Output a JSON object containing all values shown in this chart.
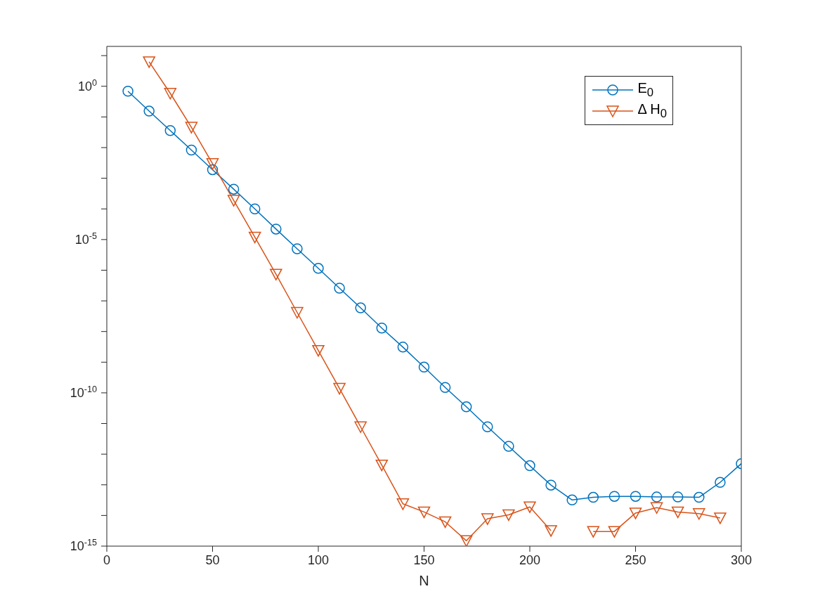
{
  "chart_data": {
    "type": "line",
    "xlabel": "N",
    "log": "y",
    "grid": false,
    "legend": "top right",
    "xlim": [
      0,
      300
    ],
    "xticks": [
      0,
      50,
      100,
      150,
      200,
      250,
      300
    ],
    "ylim": [
      1e-15,
      20
    ],
    "yticks": [
      {
        "value": 1e-15,
        "label": "10$^{-15}$"
      },
      {
        "value": 1e-14,
        "label": null
      },
      {
        "value": 1e-13,
        "label": null
      },
      {
        "value": 1e-12,
        "label": null
      },
      {
        "value": 1e-11,
        "label": null
      },
      {
        "value": 1e-10,
        "label": "10$^{-10}$"
      },
      {
        "value": 1e-09,
        "label": null
      },
      {
        "value": 1e-08,
        "label": null
      },
      {
        "value": 1e-07,
        "label": null
      },
      {
        "value": 1e-06,
        "label": null
      },
      {
        "value": 1e-05,
        "label": "10$^{-5}$"
      },
      {
        "value": 0.0001,
        "label": null
      },
      {
        "value": 0.001,
        "label": null
      },
      {
        "value": 0.01,
        "label": null
      },
      {
        "value": 0.1,
        "label": null
      },
      {
        "value": 1,
        "label": "10$^{0}$"
      },
      {
        "value": 10,
        "label": null
      }
    ],
    "series": [
      {
        "name": "E$_{0}$",
        "color": "#0072bd",
        "marker": "circle",
        "x": [
          10,
          20,
          30,
          40,
          50,
          60,
          70,
          80,
          90,
          100,
          110,
          120,
          130,
          140,
          150,
          160,
          170,
          180,
          190,
          200,
          210,
          220,
          230,
          240,
          250,
          260,
          270,
          280,
          290,
          300
        ],
        "values": [
          0.69,
          0.155,
          0.036,
          0.0083,
          0.0019,
          0.00044,
          0.0001,
          2.2e-05,
          5e-06,
          1.15e-06,
          2.6e-07,
          5.9e-08,
          1.3e-08,
          3.1e-09,
          6.9e-10,
          1.5e-10,
          3.5e-11,
          7.8e-12,
          1.8e-12,
          4.2e-13,
          9.8e-14,
          3.2e-14,
          3.9e-14,
          4.2e-14,
          4.2e-14,
          4e-14,
          4e-14,
          3.9e-14,
          1.2e-13,
          4.9e-13
        ]
      },
      {
        "name": "Δ H$_{0}$",
        "color": "#d95319",
        "marker": "triangle",
        "x": [
          20,
          30,
          40,
          50,
          60,
          70,
          80,
          90,
          100,
          110,
          120,
          130,
          140,
          150,
          160,
          170,
          180,
          190,
          200,
          210,
          220,
          230,
          240,
          250,
          260,
          270,
          280,
          290
        ],
        "values": [
          6.3,
          0.59,
          0.046,
          0.003,
          0.00019,
          1.2e-05,
          7.4e-07,
          4.2e-08,
          2.4e-09,
          1.4e-10,
          7.8e-12,
          4.4e-13,
          2.4e-14,
          1.3e-14,
          6.2e-15,
          1.5e-15,
          7.8e-15,
          1.05e-14,
          1.9e-14,
          3.2e-15,
          null,
          3e-15,
          3e-15,
          1.2e-14,
          1.8e-14,
          1.3e-14,
          1.15e-14,
          8.3e-15
        ]
      }
    ]
  }
}
